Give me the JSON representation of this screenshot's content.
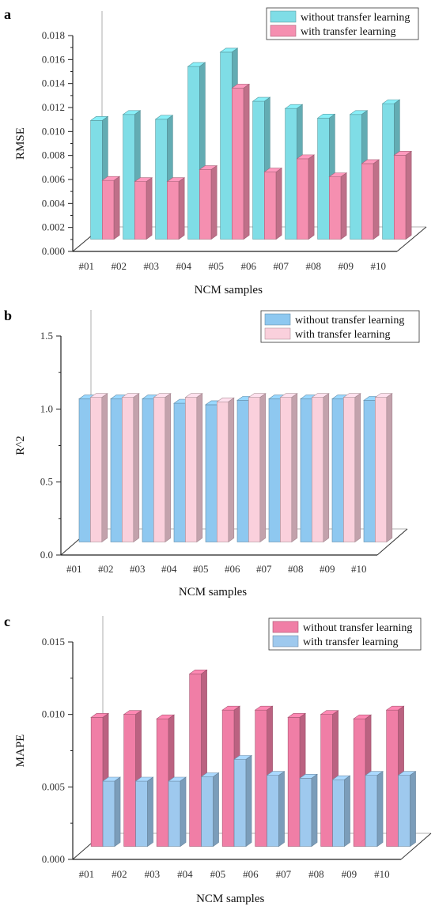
{
  "chart_data": [
    {
      "type": "bar",
      "panel_label": "a",
      "ylabel": "RMSE",
      "xlabel": "NCM samples",
      "ylim": [
        0,
        0.018
      ],
      "yticks": [
        "0.000",
        "0.002",
        "0.004",
        "0.006",
        "0.008",
        "0.010",
        "0.012",
        "0.014",
        "0.016",
        "0.018"
      ],
      "categories": [
        "#01",
        "#02",
        "#03",
        "#04",
        "#05",
        "#06",
        "#07",
        "#08",
        "#09",
        "#10"
      ],
      "series": [
        {
          "name": "without transfer learning",
          "color": "#7fdde6",
          "values": [
            0.0099,
            0.0104,
            0.01,
            0.0144,
            0.0156,
            0.0115,
            0.0109,
            0.0101,
            0.0104,
            0.0113
          ]
        },
        {
          "name": "with transfer learning",
          "color": "#f58fb0",
          "values": [
            0.0049,
            0.0048,
            0.0048,
            0.0058,
            0.0126,
            0.0056,
            0.0067,
            0.0052,
            0.0063,
            0.007
          ]
        }
      ],
      "legend": "top-right",
      "grid": false
    },
    {
      "type": "bar",
      "panel_label": "b",
      "ylabel": "R^2",
      "xlabel": "NCM samples",
      "ylim": [
        0,
        1.5
      ],
      "yticks": [
        "0.0",
        "0.5",
        "1.0",
        "1.5"
      ],
      "categories": [
        "#01",
        "#02",
        "#03",
        "#04",
        "#05",
        "#06",
        "#07",
        "#08",
        "#09",
        "#10"
      ],
      "series": [
        {
          "name": "without transfer learning",
          "color": "#8ec8f0",
          "values": [
            0.98,
            0.98,
            0.98,
            0.95,
            0.94,
            0.97,
            0.98,
            0.98,
            0.98,
            0.97
          ]
        },
        {
          "name": "with transfer learning",
          "color": "#fad0dc",
          "values": [
            0.99,
            0.99,
            0.99,
            0.99,
            0.96,
            0.99,
            0.99,
            0.99,
            0.99,
            0.99
          ]
        }
      ],
      "legend": "top-right",
      "grid": false
    },
    {
      "type": "bar",
      "panel_label": "c",
      "ylabel": "MAPE",
      "xlabel": "NCM samples",
      "ylim": [
        0,
        0.015
      ],
      "yticks": [
        "0.000",
        "0.005",
        "0.010",
        "0.015"
      ],
      "categories": [
        "#01",
        "#02",
        "#03",
        "#04",
        "#05",
        "#06",
        "#07",
        "#08",
        "#09",
        "#10"
      ],
      "series": [
        {
          "name": "without transfer learning",
          "color": "#f07ea6",
          "values": [
            0.0089,
            0.0091,
            0.0088,
            0.0119,
            0.0094,
            0.0094,
            0.0089,
            0.0091,
            0.0088,
            0.0094
          ]
        },
        {
          "name": "with transfer learning",
          "color": "#9ec9ee",
          "values": [
            0.0045,
            0.0045,
            0.0045,
            0.0048,
            0.006,
            0.0049,
            0.0047,
            0.0046,
            0.0049,
            0.0049
          ]
        }
      ],
      "legend": "top-right",
      "grid": false
    }
  ]
}
